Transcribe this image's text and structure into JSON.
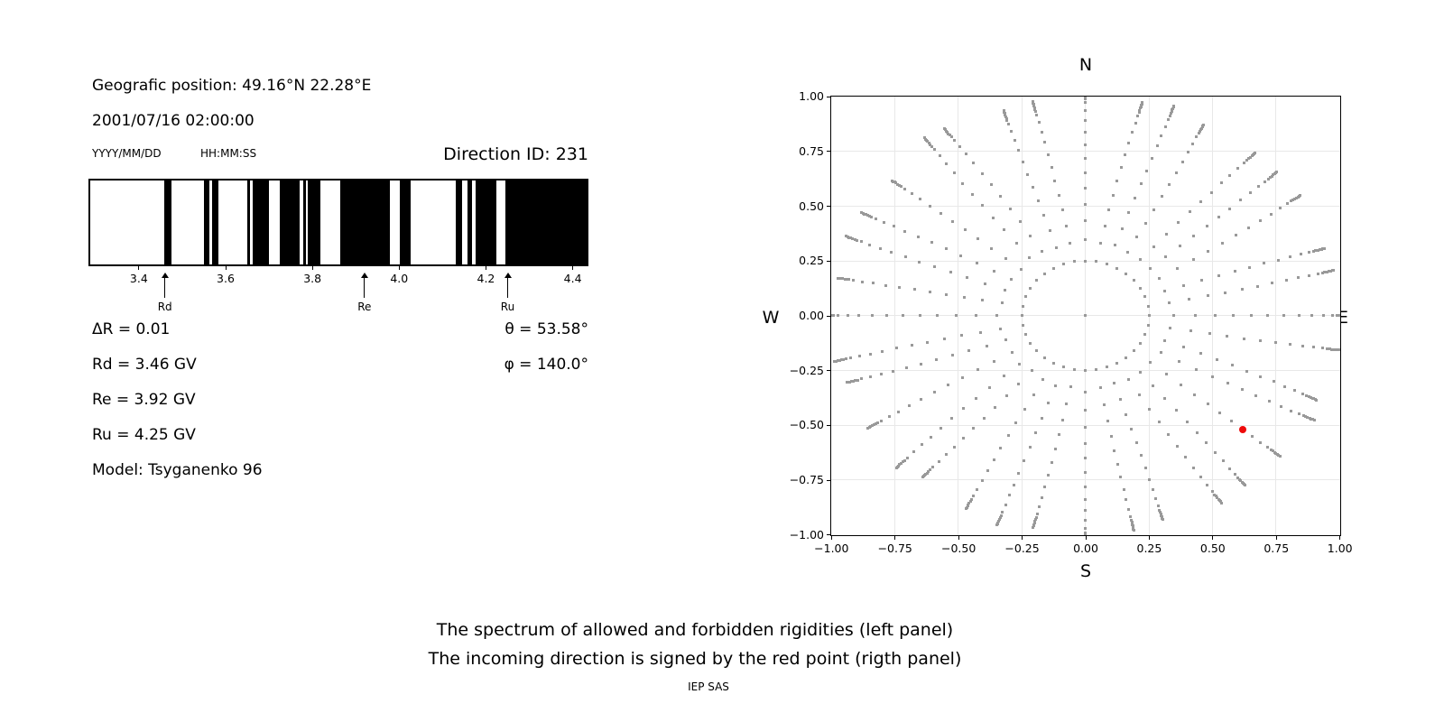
{
  "left_panel": {
    "geo_position": "Geografic position: 49.16°N 22.28°E",
    "datetime": "2001/07/16 02:00:00",
    "date_format": "YYYY/MM/DD",
    "time_format": "HH:MM:SS",
    "direction_id": "Direction ID: 231",
    "info_left": [
      "ΔR = 0.01",
      "Rd = 3.46 GV",
      "Re = 3.92 GV",
      "Ru = 4.25 GV",
      "Model: Tsyganenko 96"
    ],
    "info_right": [
      "θ = 53.58°",
      "φ = 140.0°"
    ]
  },
  "captions": {
    "line1": "The spectrum of allowed and forbidden rigidities (left panel)",
    "line2": "The incoming direction is signed by the red point (rigth panel)",
    "credit": "IEP SAS"
  },
  "chart_data": [
    {
      "type": "bar",
      "name": "rigidity-spectrum",
      "xlim": [
        3.288,
        4.432
      ],
      "xticks": [
        3.4,
        3.6,
        3.8,
        4.0,
        4.2,
        4.4
      ],
      "xtick_labels": [
        "3.4",
        "3.6",
        "3.8",
        "4.0",
        "4.2",
        "4.4"
      ],
      "unit": "GV",
      "allowed_color": "#000000",
      "forbidden_color": "#ffffff",
      "allowed_intervals_gv": [
        [
          3.459,
          3.476
        ],
        [
          3.549,
          3.562
        ],
        [
          3.569,
          3.584
        ],
        [
          3.649,
          3.656
        ],
        [
          3.662,
          3.7
        ],
        [
          3.725,
          3.77
        ],
        [
          3.779,
          3.786
        ],
        [
          3.79,
          3.818
        ],
        [
          3.865,
          3.979
        ],
        [
          4.001,
          4.026
        ],
        [
          4.131,
          4.146
        ],
        [
          4.157,
          4.167
        ],
        [
          4.177,
          4.224
        ],
        [
          4.245,
          4.432
        ]
      ],
      "markers": [
        {
          "label": "Rd",
          "value": 3.46
        },
        {
          "label": "Re",
          "value": 3.92
        },
        {
          "label": "Ru",
          "value": 4.25
        }
      ]
    },
    {
      "type": "scatter",
      "name": "incoming-direction-map",
      "compass": {
        "top": "N",
        "bottom": "S",
        "left": "W",
        "right": "E"
      },
      "xlim": [
        -1.0,
        1.0
      ],
      "ylim": [
        -1.0,
        1.0
      ],
      "xticks": [
        -1.0,
        -0.75,
        -0.5,
        -0.25,
        0.0,
        0.25,
        0.5,
        0.75,
        1.0
      ],
      "yticks": [
        1.0,
        0.75,
        0.5,
        0.25,
        0.0,
        -0.25,
        -0.5,
        -0.75,
        -1.0
      ],
      "xtick_labels": [
        "−1.00",
        "−0.75",
        "−0.50",
        "−0.25",
        "0.00",
        "0.25",
        "0.50",
        "0.75",
        "1.00"
      ],
      "ytick_labels": [
        "1.00",
        "0.75",
        "0.50",
        "0.25",
        "0.00",
        "−0.25",
        "−0.50",
        "−0.75",
        "−1.00"
      ],
      "grid": true,
      "grid_color": "#e8e8e8",
      "dot_color": "#999999",
      "center_dot": {
        "x": 0.0,
        "y": 0.0
      },
      "ring_radius": 0.25,
      "spokes": {
        "angles_deg": [
          0,
          10,
          20,
          30,
          40,
          50,
          60,
          70,
          80,
          90,
          100,
          110,
          120,
          130,
          140,
          150,
          160,
          170,
          180,
          190,
          200,
          210,
          220,
          230,
          240,
          250,
          260,
          270,
          280,
          290,
          300,
          310,
          320,
          330,
          340,
          350
        ],
        "radii": [
          0.25,
          0.335,
          0.415,
          0.49,
          0.56,
          0.627,
          0.69,
          0.75,
          0.807,
          0.856,
          0.9,
          0.935,
          0.953,
          0.962,
          0.971,
          0.979,
          0.986,
          0.992,
          0.998
        ],
        "scales": [
          1.04,
          1.0,
          0.99,
          1.01,
          1.0,
          1.0,
          0.99,
          1.02,
          1.0,
          1.04,
          1.0,
          0.99,
          1.02,
          1.03,
          0.98,
          1.0,
          1.01,
          0.99,
          1.04,
          1.01,
          0.99,
          1.0,
          1.02,
          0.98,
          1.0,
          1.02,
          0.99,
          1.04,
          1.0,
          0.98,
          1.01,
          1.0,
          1.0,
          1.02,
          0.99,
          1.01
        ],
        "drifts_deg": [
          0,
          2,
          -2,
          3,
          1,
          -2,
          2,
          0,
          -3,
          0,
          2,
          -1,
          3,
          -2,
          1,
          2,
          -1,
          0,
          0,
          2,
          -2,
          1,
          3,
          -1,
          2,
          0,
          -2,
          0,
          1,
          -2,
          2,
          -1,
          0,
          2,
          -3,
          1
        ]
      },
      "red_point": {
        "x": 0.618,
        "y": -0.519,
        "color": "#ee0a0a"
      }
    }
  ]
}
